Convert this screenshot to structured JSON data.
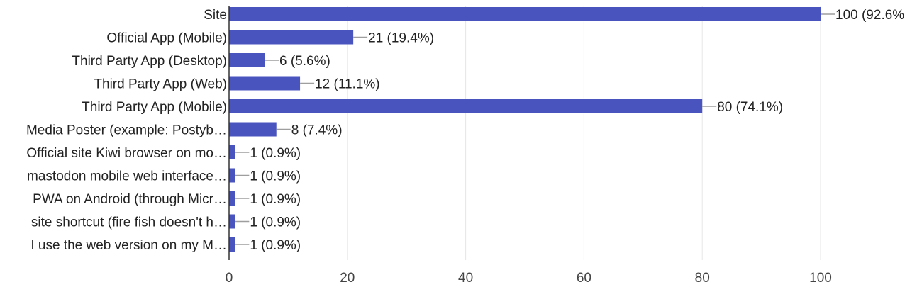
{
  "chart_data": {
    "type": "bar",
    "orientation": "horizontal",
    "title": "",
    "xlabel": "",
    "ylabel": "",
    "categories": [
      "Site",
      "Official App (Mobile)",
      "Third Party App (Desktop)",
      "Third Party App (Web)",
      "Third Party App (Mobile)",
      "Media Poster (example: Postyb…",
      "Official site Kiwi browser on mo…",
      "mastodon mobile web interface…",
      "PWA on Android (through Micr…",
      "site shortcut (fire fish doesn't h…",
      "I use the web version on my M…"
    ],
    "values": [
      100,
      21,
      6,
      12,
      80,
      8,
      1,
      1,
      1,
      1,
      1
    ],
    "data_labels": [
      "100 (92.6%",
      "21 (19.4%)",
      "6 (5.6%)",
      "12 (11.1%)",
      "80 (74.1%)",
      "8 (7.4%)",
      "1 (0.9%)",
      "1 (0.9%)",
      "1 (0.9%)",
      "1 (0.9%)",
      "1 (0.9%)"
    ],
    "xlim": [
      0,
      100
    ],
    "xticks": [
      0,
      20,
      40,
      60,
      80,
      100
    ],
    "grid": true,
    "legend": "none",
    "bar_color": "#4a54bf"
  }
}
